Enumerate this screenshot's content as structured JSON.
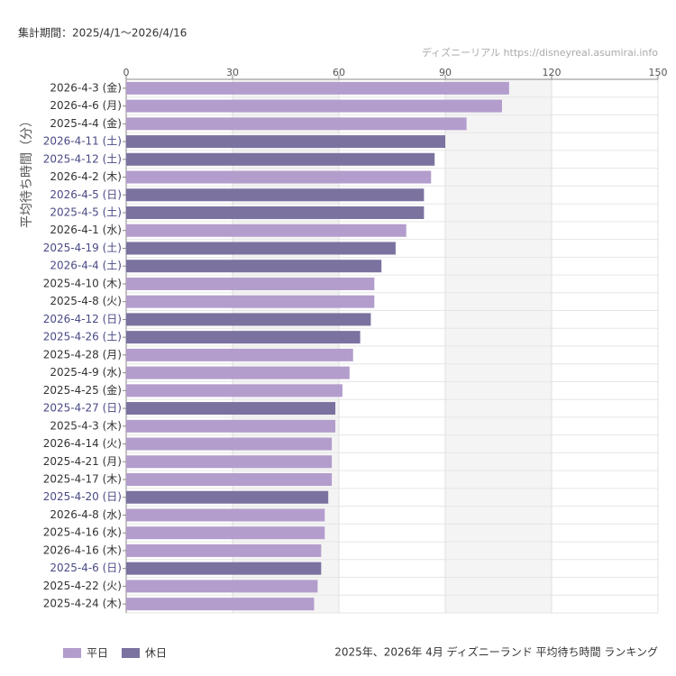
{
  "chart_data": {
    "type": "bar",
    "orientation": "horizontal",
    "subtitle": "集計期間：2025/4/1～2026/4/16",
    "source": "ディズニーリアル https://disneyreal.asumirai.info",
    "y_label": "平均待ち時間（分）",
    "title": "2025年、2026年 4月 ディズニーランド 平均待ち時間 ランキング",
    "categories": [
      "2026-4-3 (金)",
      "2026-4-6 (月)",
      "2025-4-4 (金)",
      "2026-4-11 (土)",
      "2025-4-12 (土)",
      "2026-4-2 (木)",
      "2026-4-5 (日)",
      "2025-4-5 (土)",
      "2026-4-1 (水)",
      "2025-4-19 (土)",
      "2026-4-4 (土)",
      "2025-4-10 (木)",
      "2025-4-8 (火)",
      "2026-4-12 (日)",
      "2025-4-26 (土)",
      "2025-4-28 (月)",
      "2025-4-9 (水)",
      "2025-4-25 (金)",
      "2025-4-27 (日)",
      "2025-4-3 (木)",
      "2026-4-14 (火)",
      "2025-4-21 (月)",
      "2025-4-17 (木)",
      "2025-4-20 (日)",
      "2026-4-8 (水)",
      "2025-4-16 (水)",
      "2026-4-16 (木)",
      "2025-4-6 (日)",
      "2025-4-22 (火)",
      "2025-4-24 (木)"
    ],
    "series": [
      {
        "name": "平日",
        "color": "#b39dcc",
        "label_color": "#333333",
        "values": [
          108,
          106,
          96,
          null,
          null,
          86,
          null,
          null,
          79,
          null,
          null,
          70,
          70,
          null,
          null,
          64,
          63,
          61,
          null,
          59,
          58,
          58,
          58,
          null,
          56,
          56,
          55,
          null,
          54,
          53
        ]
      },
      {
        "name": "休日",
        "color": "#7b72a0",
        "label_color": "#4a4a86",
        "values": [
          null,
          null,
          null,
          90,
          87,
          null,
          84,
          84,
          null,
          76,
          72,
          null,
          null,
          69,
          66,
          null,
          null,
          null,
          59,
          null,
          null,
          null,
          null,
          57,
          null,
          null,
          null,
          55,
          null,
          null
        ]
      }
    ],
    "xlim": [
      0,
      150
    ],
    "xticks": [
      0,
      30,
      60,
      90,
      120,
      150
    ],
    "grid": true
  }
}
